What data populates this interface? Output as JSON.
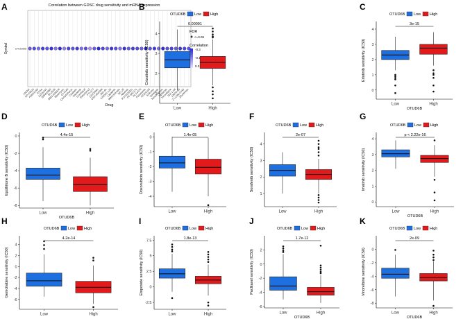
{
  "figure": {
    "title": "Multi-panel drug sensitivity figure"
  },
  "colors": {
    "low": "#1e6fe0",
    "high": "#e31a1c",
    "bubble_hi": "#2b2bd6",
    "bubble_lo": "#c9a6f2",
    "box_edge": "#222222",
    "grid": "#e3e3e3"
  },
  "chart_data": [
    {
      "panel": "A",
      "type": "scatter",
      "title": "Correlation between GDSC drug sensitivity and mRNA expression",
      "xlabel": "Drug",
      "ylabel": "Symbol",
      "symbol": "OTUD6B",
      "legend": {
        "fdr_title": "FDR",
        "fdr_item": "<=0.05",
        "corr_title": "Correlation",
        "corr_ticks": [
          "-0.3",
          "-0.1",
          "0.0"
        ]
      },
      "drugs": [
        "AICAR",
        "AP-24534",
        "AS601245",
        "ATRA",
        "AZD6244",
        "BIBW2992",
        "BI-2536",
        "BMS-536924",
        "Bleomycin",
        "CI-1040",
        "Camptothecin",
        "Cisplatin",
        "Dasatinib",
        "Docetaxel",
        "Elesclomol",
        "FTI-277",
        "GDC0941",
        "GSK-650394",
        "JNK-9L",
        "KIN001-135",
        "Lapatinib",
        "Methotrexate",
        "NG-25",
        "Nilotinib",
        "PD-0325901",
        "PF-562271",
        "PLX4720",
        "Pazopanib",
        "RDEA119",
        "Shikonin",
        "Sorafenib",
        "Temsirolimus",
        "Tipifarnib",
        "Vinorelbine",
        "WZ-1-84",
        "XMD8-85",
        "Z-LLNle-CHO",
        "Zibotentan"
      ],
      "correlation": [
        -0.18,
        -0.22,
        -0.15,
        -0.25,
        -0.2,
        -0.28,
        -0.12,
        -0.3,
        -0.1,
        -0.24,
        -0.2,
        -0.26,
        -0.14,
        -0.22,
        -0.05,
        -0.18,
        -0.3,
        -0.23,
        -0.16,
        -0.27,
        -0.21,
        -0.13,
        -0.28,
        -0.19,
        -0.25,
        -0.22,
        -0.17,
        -0.3,
        -0.2,
        -0.26,
        -0.15,
        -0.29,
        -0.21,
        -0.24,
        -0.18,
        -0.27,
        -0.23,
        -0.2
      ]
    },
    {
      "panel": "B",
      "type": "box",
      "ylabel": "Crizotinib sensitivity (IC50)",
      "xlabel": "",
      "legend_title": "OTUD6B",
      "groups": [
        "Low",
        "High"
      ],
      "pvalue": "0.00091",
      "yticks": [
        1,
        2,
        3,
        4
      ],
      "ylim": [
        0.5,
        4.6
      ],
      "stats": [
        {
          "min": 1.15,
          "q1": 2.28,
          "median": 2.68,
          "q3": 3.1,
          "max": 4.2,
          "outliers": []
        },
        {
          "min": 1.4,
          "q1": 2.25,
          "median": 2.55,
          "q3": 2.85,
          "max": 3.7,
          "outliers": [
            4.25,
            4.1,
            3.95,
            3.85,
            3.8,
            1.3,
            1.1,
            0.95,
            0.75
          ]
        }
      ]
    },
    {
      "panel": "C",
      "type": "box",
      "ylabel": "Erlotinib sensitivity (IC50)",
      "xlabel": "OTUD6B",
      "legend_title": "OTUD6B",
      "groups": [
        "Low",
        "High"
      ],
      "pvalue": "3e-15",
      "yticks": [
        0,
        1,
        2,
        3,
        4
      ],
      "ylim": [
        -0.6,
        4.5
      ],
      "stats": [
        {
          "min": 1.3,
          "q1": 2.0,
          "median": 2.3,
          "q3": 2.6,
          "max": 3.5,
          "outliers": [
            1.0,
            0.9,
            0.8,
            0.7,
            0.3,
            -0.2
          ]
        },
        {
          "min": 1.6,
          "q1": 2.35,
          "median": 2.75,
          "q3": 3.0,
          "max": 3.8,
          "outliers": [
            1.3,
            1.1,
            1.0,
            0.8,
            0.3,
            -0.1
          ]
        }
      ]
    },
    {
      "panel": "D",
      "type": "box",
      "ylabel": "Epothilone B sensitivity (IC50)",
      "xlabel": "OTUD6B",
      "legend_title": "OTUD6B",
      "groups": [
        "Low",
        "High"
      ],
      "pvalue": "4.4e-15",
      "yticks": [
        -8,
        -6,
        -4,
        -2,
        0
      ],
      "ylim": [
        -8.3,
        0.4
      ],
      "stats": [
        {
          "min": -7.5,
          "q1": -5.0,
          "median": -4.5,
          "q3": -3.7,
          "max": -1.3,
          "outliers": [
            -0.4,
            -0.2
          ]
        },
        {
          "min": -8.0,
          "q1": -6.4,
          "median": -5.6,
          "q3": -4.7,
          "max": -2.5,
          "outliers": [
            -1.7,
            -1.5
          ]
        }
      ]
    },
    {
      "panel": "E",
      "type": "box",
      "ylabel": "Doxorubicin sensitivity (IC50)",
      "xlabel": "",
      "legend_title": "OTUD6B",
      "groups": [
        "Low",
        "High"
      ],
      "pvalue": "1.4e-05",
      "yticks": [
        -4,
        -3,
        -2,
        -1,
        0
      ],
      "ylim": [
        -4.7,
        0.3
      ],
      "stats": [
        {
          "min": -3.7,
          "q1": -2.1,
          "median": -1.75,
          "q3": -1.3,
          "max": 0.0,
          "outliers": []
        },
        {
          "min": -4.0,
          "q1": -2.5,
          "median": -2.05,
          "q3": -1.5,
          "max": -0.05,
          "outliers": [
            -4.6
          ]
        }
      ]
    },
    {
      "panel": "F",
      "type": "box",
      "ylabel": "Sorafenib sensitivity (IC50)",
      "xlabel": "",
      "legend_title": "OTUD6B",
      "groups": [
        "Low",
        "High"
      ],
      "pvalue": "2e-07",
      "yticks": [
        1,
        2,
        3,
        4
      ],
      "ylim": [
        0.2,
        4.7
      ],
      "stats": [
        {
          "min": 1.0,
          "q1": 2.05,
          "median": 2.4,
          "q3": 2.75,
          "max": 3.5,
          "outliers": []
        },
        {
          "min": 1.0,
          "q1": 1.85,
          "median": 2.15,
          "q3": 2.45,
          "max": 3.1,
          "outliers": [
            4.2,
            4.0,
            3.8,
            3.7,
            3.5,
            3.3,
            0.9,
            0.75,
            0.6,
            0.45
          ]
        }
      ]
    },
    {
      "panel": "G",
      "type": "box",
      "ylabel": "Imatinib sensitivity (IC50)",
      "xlabel": "OTUD6B",
      "legend_title": "OTUD6B",
      "groups": [
        "Low",
        "High"
      ],
      "pvalue": "p < 2.22e-16",
      "yticks": [
        0,
        1,
        2,
        3,
        4
      ],
      "ylim": [
        -0.3,
        4.4
      ],
      "stats": [
        {
          "min": 2.1,
          "q1": 2.85,
          "median": 3.05,
          "q3": 3.3,
          "max": 3.9,
          "outliers": []
        },
        {
          "min": 1.6,
          "q1": 2.5,
          "median": 2.75,
          "q3": 2.95,
          "max": 3.6,
          "outliers": [
            3.9,
            1.4,
            0.6,
            0.1
          ]
        }
      ]
    },
    {
      "panel": "H",
      "type": "box",
      "ylabel": "Gemcitabine sensitivity (IC50)",
      "xlabel": "",
      "legend_title": "OTUD6B",
      "groups": [
        "Low",
        "High"
      ],
      "pvalue": "4.2e-14",
      "yticks": [
        -6,
        -4,
        -2,
        0,
        2,
        4
      ],
      "ylim": [
        -7.8,
        5.6
      ],
      "stats": [
        {
          "min": -5.5,
          "q1": -3.6,
          "median": -2.6,
          "q3": -1.2,
          "max": 2.2,
          "outliers": [
            4.6,
            3.9,
            3.2
          ]
        },
        {
          "min": -6.8,
          "q1": -4.8,
          "median": -3.8,
          "q3": -2.7,
          "max": 0.2,
          "outliers": [
            1.6,
            1.1,
            -7.4
          ]
        }
      ]
    },
    {
      "panel": "I",
      "type": "box",
      "ylabel": "Etoposide sensitivity (IC50)",
      "xlabel": "",
      "legend_title": "OTUD6B",
      "groups": [
        "Low",
        "High"
      ],
      "pvalue": "1.8e-13",
      "yticks": [
        -2.5,
        0.0,
        2.5,
        5.0,
        7.5
      ],
      "ylim": [
        -3.6,
        8.2
      ],
      "stats": [
        {
          "min": -0.8,
          "q1": 1.4,
          "median": 2.1,
          "q3": 2.9,
          "max": 5.3,
          "outliers": [
            6.8,
            6.4,
            6.0,
            5.7,
            -1.8
          ]
        },
        {
          "min": -1.4,
          "q1": 0.5,
          "median": 1.1,
          "q3": 1.7,
          "max": 3.6,
          "outliers": [
            5.6,
            5.2,
            4.8,
            4.4,
            4.0,
            -2.5,
            -3.0
          ]
        }
      ]
    },
    {
      "panel": "J",
      "type": "box",
      "ylabel": "Paclitaxel sensitivity (IC50)",
      "xlabel": "OTUD6B",
      "legend_title": "OTUD6B",
      "groups": [
        "Low",
        "High"
      ],
      "pvalue": "1.7e-12",
      "yticks": [
        -6,
        -4,
        -2,
        0,
        2
      ],
      "ylim": [
        -6.2,
        4.0
      ],
      "stats": [
        {
          "min": -5.0,
          "q1": -3.7,
          "median": -3.1,
          "q3": -1.8,
          "max": 1.4,
          "outliers": [
            2.5,
            2.2,
            1.9,
            1.7
          ]
        },
        {
          "min": -5.5,
          "q1": -4.4,
          "median": -3.9,
          "q3": -3.3,
          "max": -1.6,
          "outliers": [
            -0.2,
            -0.5,
            -0.8,
            -1.1,
            -1.3,
            2.6
          ]
        }
      ]
    },
    {
      "panel": "K",
      "type": "box",
      "ylabel": "Vinorelbine sensitivity (IC50)",
      "xlabel": "OTUD6B",
      "legend_title": "OTUD6B",
      "groups": [
        "Low",
        "High"
      ],
      "pvalue": "2e-09",
      "yticks": [
        -8,
        -6,
        -4,
        -2,
        0
      ],
      "ylim": [
        -8.7,
        2.0
      ],
      "stats": [
        {
          "min": -7.0,
          "q1": -4.3,
          "median": -3.7,
          "q3": -2.8,
          "max": -0.8,
          "outliers": [
            -0.1
          ]
        },
        {
          "min": -7.6,
          "q1": -4.7,
          "median": -4.2,
          "q3": -3.6,
          "max": -1.8,
          "outliers": [
            -0.2,
            -0.8,
            -1.2,
            -1.6,
            -8.4
          ]
        }
      ]
    }
  ]
}
